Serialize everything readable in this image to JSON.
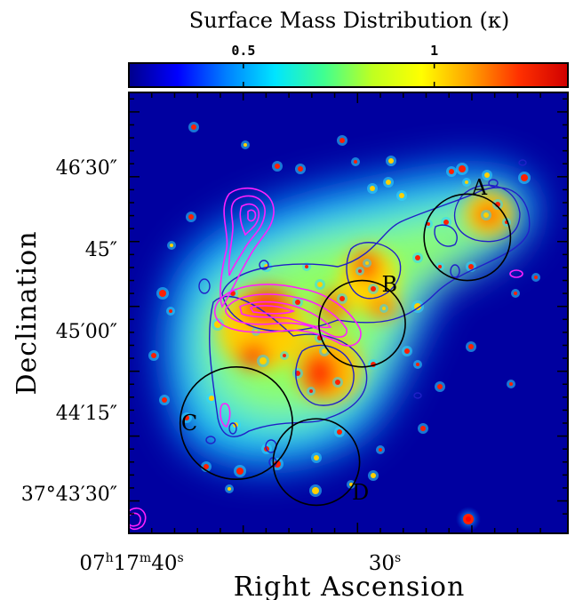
{
  "chart_data": {
    "type": "heatmap",
    "title": "Surface Mass Distribution (κ)",
    "colorbar": {
      "tick_labels": [
        "0.5",
        "1"
      ],
      "tick_values": [
        0.5,
        1.0
      ],
      "range": [
        0.2,
        1.35
      ],
      "colormap": [
        "#00008b",
        "#0000ff",
        "#0080ff",
        "#00e5ff",
        "#40ff90",
        "#c0ff20",
        "#ffff00",
        "#ffa000",
        "#ff3000",
        "#d00000"
      ]
    },
    "xlabel": "Right Ascension",
    "ylabel": "Declination",
    "x_ticks": [
      {
        "value": "07:17:40",
        "h": "07",
        "m": "17",
        "s": "40"
      },
      {
        "value": "07:17:30",
        "s": "30"
      }
    ],
    "y_ticks": [
      {
        "value": "+37:46:30",
        "label": "46′30″"
      },
      {
        "value": "+37:45:45",
        "label": "45″"
      },
      {
        "value": "+37:45:00",
        "label": "45′00″"
      },
      {
        "value": "+37:44:15",
        "label": "44′15″"
      },
      {
        "value": "+37:43:30",
        "label": "37°43′30″"
      }
    ],
    "x_range_sec": [
      40.0,
      20.8
    ],
    "y_range_arcsec": [
      103.5,
      205.5
    ],
    "subclusters": [
      {
        "label": "A",
        "ra_sec": 25.2,
        "dec_arcsec": 172.0,
        "radius_arcsec": 10
      },
      {
        "label": "B",
        "ra_sec": 29.8,
        "dec_arcsec": 152.0,
        "radius_arcsec": 10
      },
      {
        "label": "C",
        "ra_sec": 35.3,
        "dec_arcsec": 129.0,
        "radius_arcsec": 13
      },
      {
        "label": "D",
        "ra_sec": 31.8,
        "dec_arcsec": 120.0,
        "radius_arcsec": 10
      }
    ],
    "contour_colors": {
      "magenta": "#ff20ff",
      "blue": "#2020c8"
    }
  }
}
